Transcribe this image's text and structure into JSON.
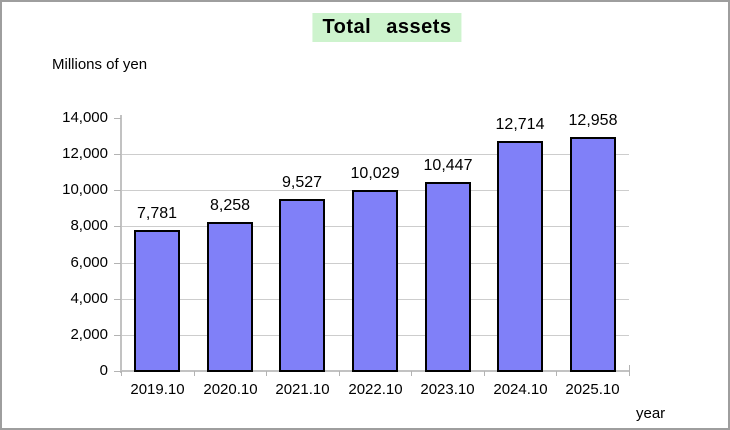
{
  "chart_data": {
    "type": "bar",
    "title": "Total assets",
    "ylabel": "Millions of yen",
    "xlabel": "year",
    "categories": [
      "2019.10",
      "2020.10",
      "2021.10",
      "2022.10",
      "2023.10",
      "2024.10",
      "2025.10"
    ],
    "values": [
      7781,
      8258,
      9527,
      10029,
      10447,
      12714,
      12958
    ],
    "value_labels": [
      "7,781",
      "8,258",
      "9,527",
      "10,029",
      "10,447",
      "12,714",
      "12,958"
    ],
    "ylim": [
      0,
      14000
    ],
    "ytick_step": 2000,
    "yticks": [
      0,
      2000,
      4000,
      6000,
      8000,
      10000,
      12000,
      14000
    ],
    "ytick_labels": [
      "0",
      "2,000",
      "4,000",
      "6,000",
      "8,000",
      "10,000",
      "12,000",
      "14,000"
    ],
    "grid": true,
    "legend": false,
    "colors": {
      "bar_fill": "#8080F8",
      "bar_border": "#000000",
      "gridline": "#CDCDCD",
      "axis": "#C2C2C2",
      "tick": "#B3B3B3",
      "title_bg": "#CDF3CD",
      "text": "#000000"
    }
  }
}
